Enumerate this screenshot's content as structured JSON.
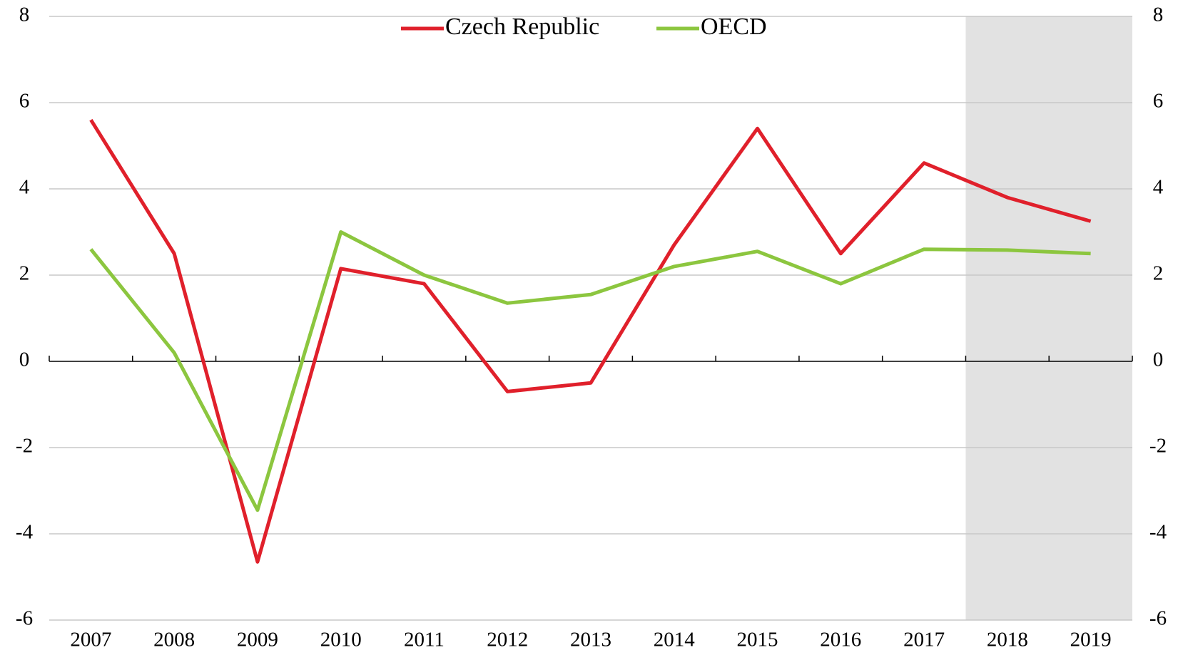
{
  "chart_data": {
    "type": "line",
    "categories": [
      "2007",
      "2008",
      "2009",
      "2010",
      "2011",
      "2012",
      "2013",
      "2014",
      "2015",
      "2016",
      "2017",
      "2018",
      "2019"
    ],
    "series": [
      {
        "name": "Czech Republic",
        "color": "#e0202b",
        "values": [
          5.6,
          2.5,
          -4.65,
          2.15,
          1.8,
          -0.7,
          -0.5,
          2.7,
          5.4,
          2.5,
          4.6,
          3.8,
          3.25
        ]
      },
      {
        "name": "OECD",
        "color": "#8cc63f",
        "values": [
          2.6,
          0.2,
          -3.45,
          3.0,
          2.0,
          1.35,
          1.55,
          2.2,
          2.55,
          1.8,
          2.6,
          2.58,
          2.5
        ]
      }
    ],
    "ylim": [
      -6,
      8
    ],
    "yticks": [
      -6,
      -4,
      -2,
      0,
      2,
      4,
      6,
      8
    ],
    "y2lim": [
      -6,
      8
    ],
    "y2ticks": [
      -6,
      -4,
      -2,
      0,
      2,
      4,
      6,
      8
    ],
    "grid": true,
    "legend": "top",
    "shaded_range": [
      11,
      12
    ],
    "shade_color": "#e2e2e2"
  }
}
